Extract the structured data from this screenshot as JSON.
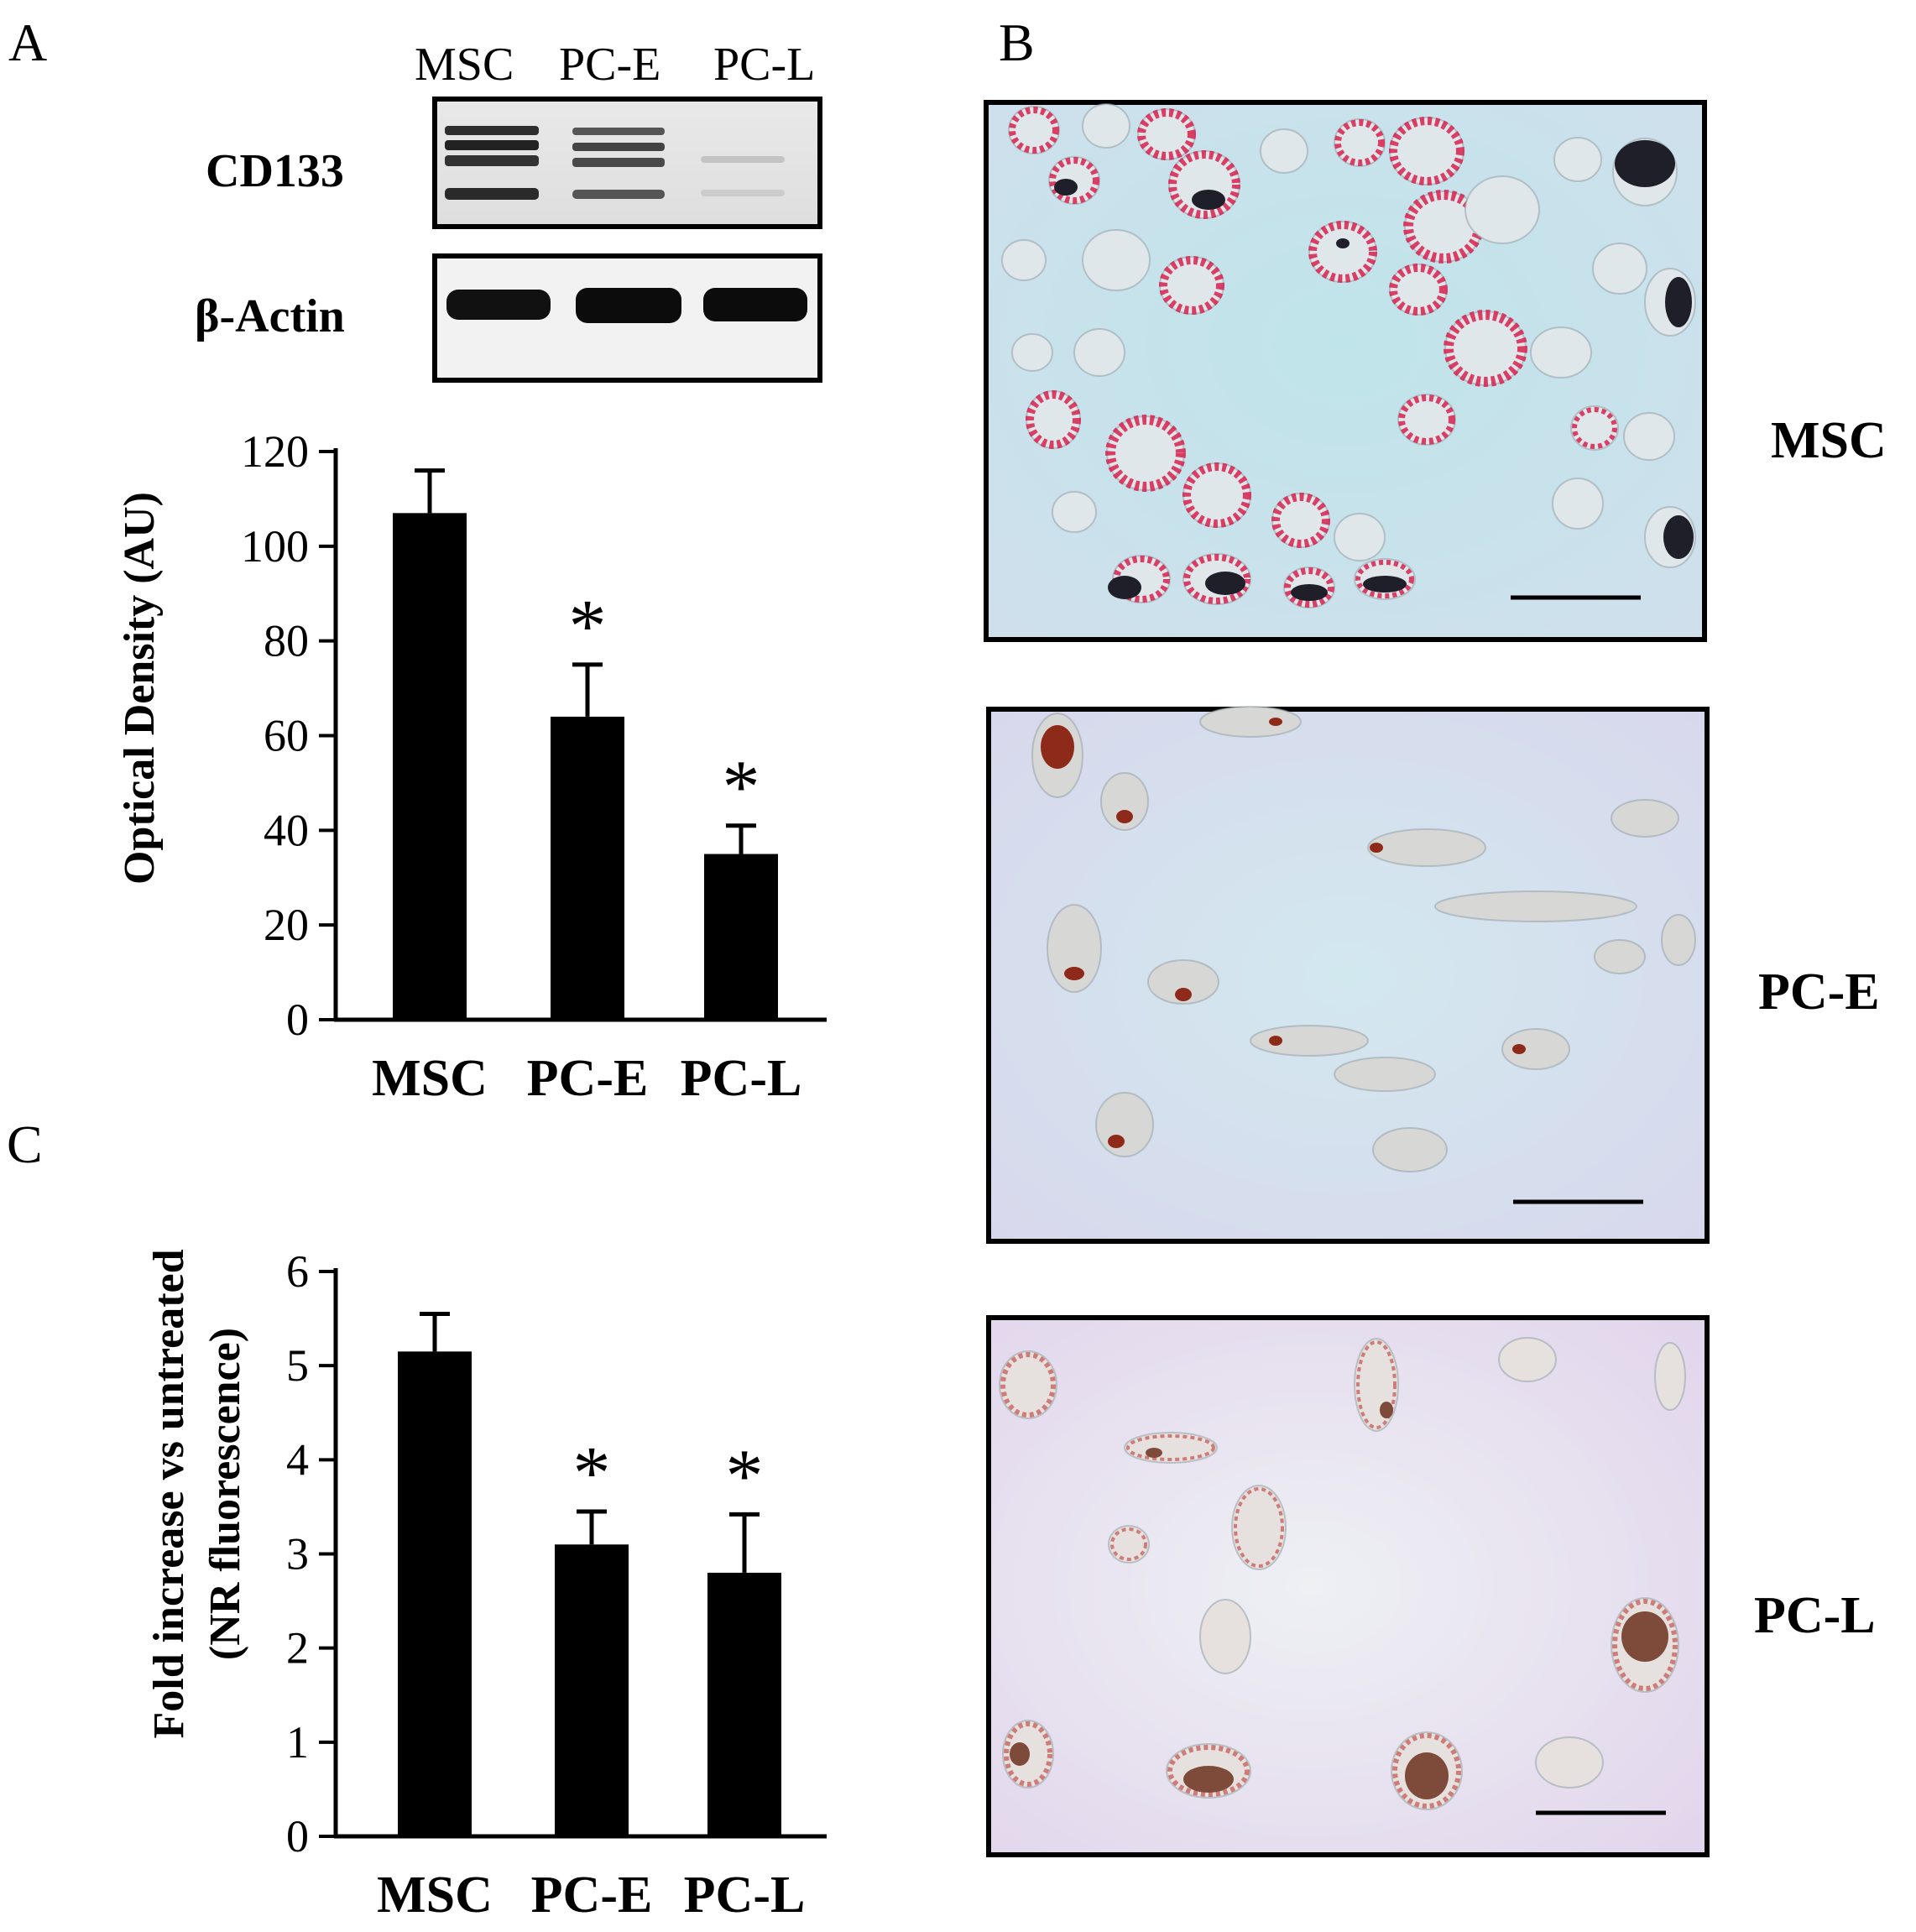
{
  "panel_labels": {
    "a": "A",
    "b": "B",
    "c": "C"
  },
  "western_blot": {
    "lanes": [
      "MSC",
      "PC-E",
      "PC-L"
    ],
    "rows": [
      {
        "label": "CD133"
      },
      {
        "label": "β-Actin"
      }
    ]
  },
  "micrographs": [
    {
      "label": "MSC",
      "stain_color": "#d8204e",
      "background": "#c8e6ec"
    },
    {
      "label": "PC-E",
      "stain_color": "#b8301e",
      "background": "#d6e2f0"
    },
    {
      "label": "PC-L",
      "stain_color": "#b84a3a",
      "background": "#e4dcee"
    }
  ],
  "chart_data": [
    {
      "panel": "A",
      "type": "bar",
      "categories": [
        "MSC",
        "PC-E",
        "PC-L"
      ],
      "values": [
        107,
        64,
        35
      ],
      "errors": [
        9,
        11,
        6
      ],
      "significance": [
        "",
        "*",
        "*"
      ],
      "ylabel": "Optical Density (AU)",
      "ylim": [
        0,
        120
      ],
      "yticks": [
        0,
        20,
        40,
        60,
        80,
        100,
        120
      ],
      "bar_color": "#000000"
    },
    {
      "panel": "C",
      "type": "bar",
      "categories": [
        "MSC",
        "PC-E",
        "PC-L"
      ],
      "values": [
        5.15,
        3.1,
        2.8
      ],
      "errors": [
        0.4,
        0.35,
        0.62
      ],
      "significance": [
        "",
        "*",
        "*"
      ],
      "ylabel_lines": [
        "Fold increase vs untreated",
        "(NR fluorescence)"
      ],
      "ylim": [
        0,
        6
      ],
      "yticks": [
        0,
        1,
        2,
        3,
        4,
        5,
        6
      ],
      "bar_color": "#000000"
    }
  ]
}
